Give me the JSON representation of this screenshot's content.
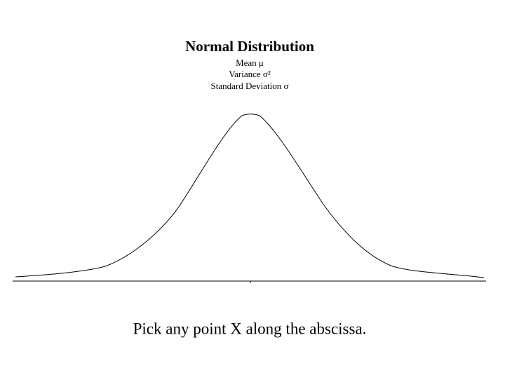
{
  "header": {
    "title": "Normal Distribution",
    "lines": [
      "Mean μ",
      "Variance σ²",
      "Standard Deviation σ"
    ]
  },
  "caption": "Pick any point X along the abscissa."
}
